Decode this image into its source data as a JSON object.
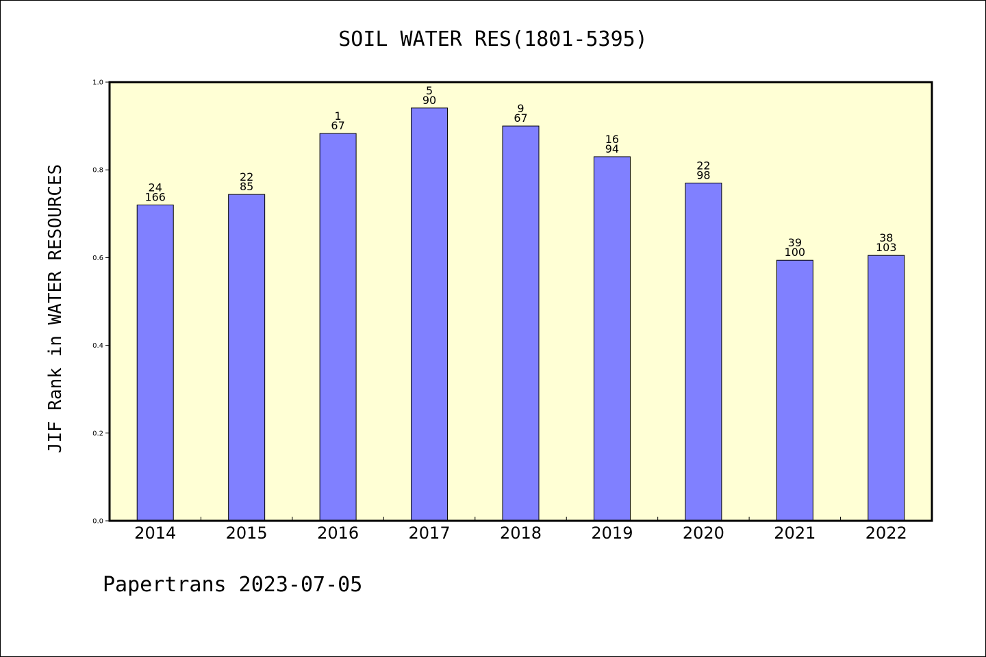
{
  "chart_data": {
    "type": "bar",
    "title": "SOIL WATER RES(1801-5395)",
    "ylabel": "JIF Rank in WATER RESOURCES",
    "xlabel": "",
    "footer": "Papertrans 2023-07-05",
    "ylim": [
      0,
      1.0
    ],
    "yticks": [
      "0.0",
      "0.2",
      "0.4",
      "0.6",
      "0.8",
      "1.0"
    ],
    "categories": [
      "2014",
      "2015",
      "2016",
      "2017",
      "2018",
      "2019",
      "2020",
      "2021",
      "2022"
    ],
    "values": [
      0.72,
      0.744,
      0.883,
      0.941,
      0.9,
      0.83,
      0.77,
      0.594,
      0.605
    ],
    "ranks": [
      "24",
      "22",
      "1",
      "5",
      "9",
      "16",
      "22",
      "39",
      "38"
    ],
    "totals": [
      "166",
      "85",
      "67",
      "90",
      "67",
      "94",
      "98",
      "100",
      "103"
    ],
    "grid": false,
    "colors": {
      "plot_background": "#ffffd5",
      "bar_fill": "#8080ff",
      "bar_stroke": "#000000"
    }
  }
}
